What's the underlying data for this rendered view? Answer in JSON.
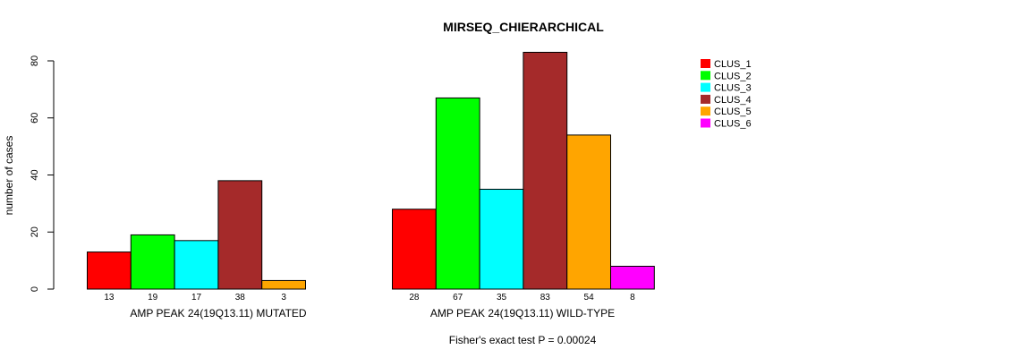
{
  "chart_data": {
    "type": "bar",
    "title": "MIRSEQ_CHIERARCHICAL",
    "ylabel": "number of cases",
    "ylim": [
      0,
      80
    ],
    "yticks": [
      0,
      20,
      40,
      60,
      80
    ],
    "groups": [
      {
        "label": "AMP PEAK 24(19Q13.11) MUTATED",
        "values": [
          13,
          19,
          17,
          38,
          3,
          0
        ],
        "value_labels": [
          "13",
          "19",
          "17",
          "38",
          "3",
          ""
        ]
      },
      {
        "label": "AMP PEAK 24(19Q13.11) WILD-TYPE",
        "values": [
          28,
          67,
          35,
          83,
          54,
          8
        ],
        "value_labels": [
          "28",
          "67",
          "35",
          "83",
          "54",
          "8"
        ]
      }
    ],
    "series": [
      {
        "name": "CLUS_1",
        "color": "#ff0000"
      },
      {
        "name": "CLUS_2",
        "color": "#00ff00"
      },
      {
        "name": "CLUS_3",
        "color": "#00ffff"
      },
      {
        "name": "CLUS_4",
        "color": "#a52a2a"
      },
      {
        "name": "CLUS_5",
        "color": "#ffa500"
      },
      {
        "name": "CLUS_6",
        "color": "#ff00ff"
      }
    ],
    "legend_position": "top-right",
    "footnote": "Fisher's exact test P = 0.00024"
  }
}
